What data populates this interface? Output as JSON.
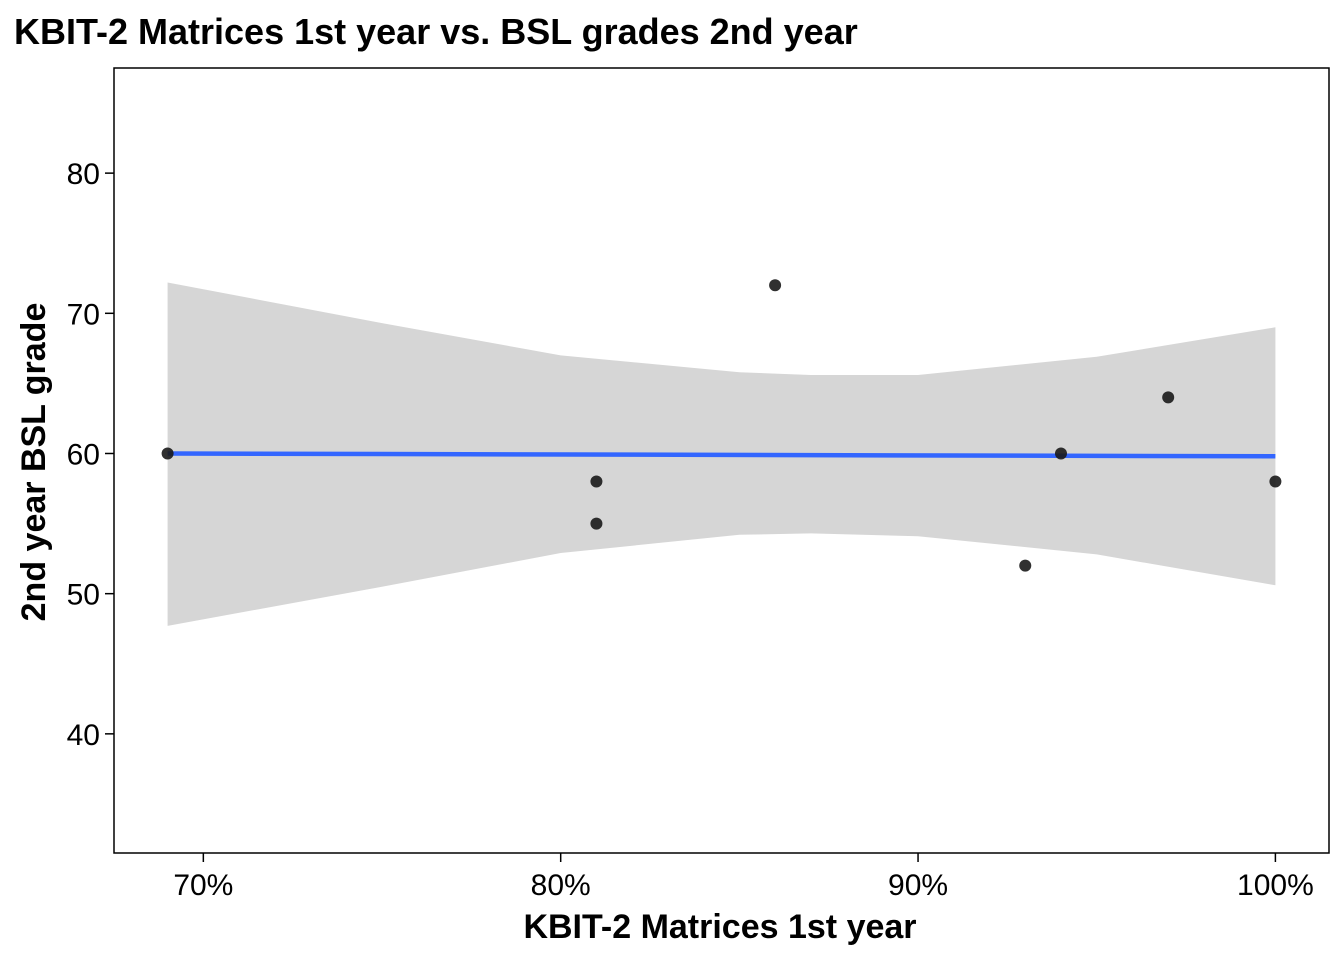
{
  "chart_data": {
    "type": "scatter",
    "title": "KBIT-2 Matrices 1st year vs. BSL grades 2nd year",
    "xlabel": "KBIT-2 Matrices 1st year",
    "ylabel": "2nd year BSL grade",
    "xlim": [
      0.675,
      1.015
    ],
    "ylim": [
      31.5,
      87.5
    ],
    "x_ticks": [
      0.7,
      0.8,
      0.9,
      1.0
    ],
    "x_tick_labels": [
      "70%",
      "80%",
      "90%",
      "100%"
    ],
    "y_ticks": [
      40,
      50,
      60,
      70,
      80
    ],
    "y_tick_labels": [
      "40",
      "50",
      "60",
      "70",
      "80"
    ],
    "grid": false,
    "points": [
      {
        "x": 0.69,
        "y": 60
      },
      {
        "x": 0.81,
        "y": 58
      },
      {
        "x": 0.81,
        "y": 55
      },
      {
        "x": 0.86,
        "y": 72
      },
      {
        "x": 0.93,
        "y": 52
      },
      {
        "x": 0.94,
        "y": 60
      },
      {
        "x": 0.97,
        "y": 64
      },
      {
        "x": 1.0,
        "y": 58
      }
    ],
    "trend_line": {
      "x": [
        0.69,
        1.0
      ],
      "y": [
        60.0,
        59.8
      ]
    },
    "confidence_band": {
      "x": [
        0.69,
        0.75,
        0.8,
        0.85,
        0.87,
        0.9,
        0.95,
        1.0
      ],
      "upper": [
        72.2,
        69.3,
        67.0,
        65.8,
        65.6,
        65.6,
        66.9,
        69.0
      ],
      "lower": [
        47.7,
        50.5,
        52.9,
        54.2,
        54.3,
        54.1,
        52.8,
        50.6
      ]
    },
    "colors": {
      "point": "#1a1a1a",
      "trend_line": "#3366ff",
      "band": "#d6d6d6",
      "axis": "#000000"
    }
  }
}
